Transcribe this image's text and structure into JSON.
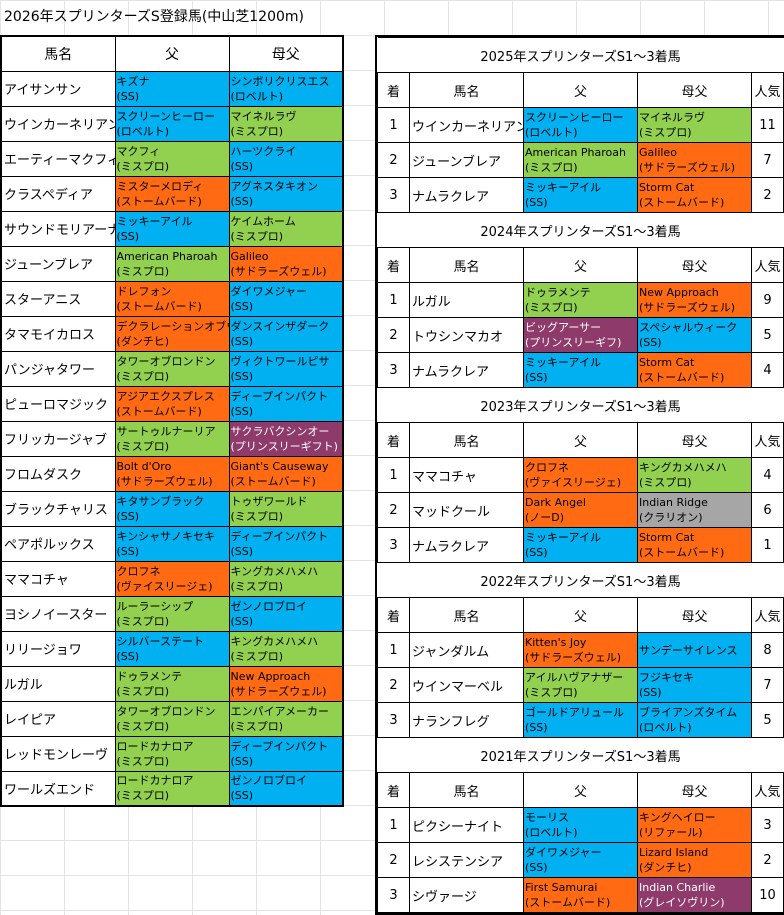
{
  "title": "2026年スプリンターズS登録馬(中山芝1200m)",
  "left": {
    "headers": {
      "name": "馬名",
      "sire": "父",
      "damsire": "母父"
    },
    "rows": [
      {
        "name": "アイサンサン",
        "sire": "キズナ",
        "sire_line": "(SS)",
        "sire_color": "blue",
        "dam": "シンボリクリスエス",
        "dam_line": "(ロベルト)",
        "dam_color": "blue"
      },
      {
        "name": "ウインカーネリアン",
        "sire": "スクリーンヒーロー",
        "sire_line": "(ロベルト)",
        "sire_color": "blue",
        "dam": "マイネルラヴ",
        "dam_line": "(ミスプロ)",
        "dam_color": "green"
      },
      {
        "name": "エーティーマクフィ",
        "sire": "マクフィ",
        "sire_line": "(ミスプロ)",
        "sire_color": "green",
        "dam": "ハーツクライ",
        "dam_line": "(SS)",
        "dam_color": "blue"
      },
      {
        "name": "クラスペディア",
        "sire": "ミスターメロディ",
        "sire_line": "(ストームバード)",
        "sire_color": "orange",
        "dam": "アグネスタキオン",
        "dam_line": "(SS)",
        "dam_color": "blue"
      },
      {
        "name": "サウンドモリアーナ",
        "sire": "ミッキーアイル",
        "sire_line": "(SS)",
        "sire_color": "blue",
        "dam": "ケイムホーム",
        "dam_line": "(ミスプロ)",
        "dam_color": "green"
      },
      {
        "name": "ジューンブレア",
        "sire": "American Pharoah",
        "sire_line": "(ミスプロ)",
        "sire_color": "green",
        "dam": "Galileo",
        "dam_line": "(サドラーズウェル)",
        "dam_color": "orange"
      },
      {
        "name": "スターアニス",
        "sire": "ドレフォン",
        "sire_line": "(ストームバード)",
        "sire_color": "orange",
        "dam": "ダイワメジャー",
        "dam_line": "(SS)",
        "dam_color": "blue"
      },
      {
        "name": "タマモイカロス",
        "sire": "デクラレーションオブウォー",
        "sire_line": "(ダンチヒ)",
        "sire_color": "orange",
        "dam": "ダンスインザダーク",
        "dam_line": "(SS)",
        "dam_color": "blue"
      },
      {
        "name": "パンジャタワー",
        "sire": "タワーオブロンドン",
        "sire_line": "(ミスプロ)",
        "sire_color": "green",
        "dam": "ヴィクトワールピサ",
        "dam_line": "(SS)",
        "dam_color": "blue"
      },
      {
        "name": "ピューロマジック",
        "sire": "アジアエクスプレス",
        "sire_line": "(ストームバード)",
        "sire_color": "orange",
        "dam": "ディープインパクト",
        "dam_line": "(SS)",
        "dam_color": "blue"
      },
      {
        "name": "フリッカージャブ",
        "sire": "サートゥルナーリア",
        "sire_line": "(ミスプロ)",
        "sire_color": "green",
        "dam": "サクラバクシンオー",
        "dam_line": "(プリンスリーギフト)",
        "dam_color": "purple"
      },
      {
        "name": "フロムダスク",
        "sire": "Bolt d'Oro",
        "sire_line": "(サドラーズウェル)",
        "sire_color": "orange",
        "dam": "Giant's Causeway",
        "dam_line": "(ストームバード)",
        "dam_color": "orange"
      },
      {
        "name": "ブラックチャリス",
        "sire": "キタサンブラック",
        "sire_line": "(SS)",
        "sire_color": "blue",
        "dam": "トゥザワールド",
        "dam_line": "(ミスプロ)",
        "dam_color": "green"
      },
      {
        "name": "ペアポルックス",
        "sire": "キンシャサノキセキ",
        "sire_line": "(SS)",
        "sire_color": "blue",
        "dam": "ディープインパクト",
        "dam_line": "(SS)",
        "dam_color": "blue"
      },
      {
        "name": "ママコチャ",
        "sire": "クロフネ",
        "sire_line": "(ヴァイスリージェ)",
        "sire_color": "orange",
        "dam": "キングカメハメハ",
        "dam_line": "(ミスプロ)",
        "dam_color": "green"
      },
      {
        "name": "ヨシノイースター",
        "sire": "ルーラーシップ",
        "sire_line": "(ミスプロ)",
        "sire_color": "green",
        "dam": "ゼンノロブロイ",
        "dam_line": "(SS)",
        "dam_color": "blue"
      },
      {
        "name": "リリージョワ",
        "sire": "シルバーステート",
        "sire_line": "(SS)",
        "sire_color": "blue",
        "dam": "キングカメハメハ",
        "dam_line": "(ミスプロ)",
        "dam_color": "green"
      },
      {
        "name": "ルガル",
        "sire": "ドゥラメンテ",
        "sire_line": "(ミスプロ)",
        "sire_color": "green",
        "dam": "New Approach",
        "dam_line": "(サドラーズウェル)",
        "dam_color": "orange"
      },
      {
        "name": "レイピア",
        "sire": "タワーオブロンドン",
        "sire_line": "(ミスプロ)",
        "sire_color": "green",
        "dam": "エンパイアメーカー",
        "dam_line": "(ミスプロ)",
        "dam_color": "green"
      },
      {
        "name": "レッドモンレーヴ",
        "sire": "ロードカナロア",
        "sire_line": "(ミスプロ)",
        "sire_color": "green",
        "dam": "ディープインパクト",
        "dam_line": "(SS)",
        "dam_color": "blue"
      },
      {
        "name": "ワールズエンド",
        "sire": "ロードカナロア",
        "sire_line": "(ミスプロ)",
        "sire_color": "green",
        "dam": "ゼンノロブロイ",
        "dam_line": "(SS)",
        "dam_color": "blue"
      }
    ]
  },
  "right": {
    "headers": {
      "rank": "着",
      "name": "馬名",
      "sire": "父",
      "damsire": "母父",
      "pop": "人気"
    },
    "sections": [
      {
        "title": "2025年スプリンターズS1～3着馬",
        "rows": [
          {
            "rank": "1",
            "name": "ウインカーネリアン",
            "sire": "スクリーンヒーロー",
            "sire_line": "(ロベルト)",
            "sire_color": "blue",
            "dam": "マイネルラヴ",
            "dam_line": "(ミスプロ)",
            "dam_color": "green",
            "pop": "11"
          },
          {
            "rank": "2",
            "name": "ジューンブレア",
            "sire": "American Pharoah",
            "sire_line": "(ミスプロ)",
            "sire_color": "green",
            "dam": "Galileo",
            "dam_line": "(サドラーズウェル)",
            "dam_color": "orange",
            "pop": "7"
          },
          {
            "rank": "3",
            "name": "ナムラクレア",
            "sire": "ミッキーアイル",
            "sire_line": "(SS)",
            "sire_color": "blue",
            "dam": "Storm Cat",
            "dam_line": "(ストームバード)",
            "dam_color": "orange",
            "pop": "2"
          }
        ]
      },
      {
        "title": "2024年スプリンターズS1～3着馬",
        "rows": [
          {
            "rank": "1",
            "name": "ルガル",
            "sire": "ドゥラメンテ",
            "sire_line": "(ミスプロ)",
            "sire_color": "green",
            "dam": "New Approach",
            "dam_line": "(サドラーズウェル)",
            "dam_color": "orange",
            "pop": "9"
          },
          {
            "rank": "2",
            "name": "トウシンマカオ",
            "sire": "ビッグアーサー",
            "sire_line": "(プリンスリーギフ)",
            "sire_color": "purple",
            "dam": "スペシャルウィーク",
            "dam_line": "(SS)",
            "dam_color": "blue",
            "pop": "5"
          },
          {
            "rank": "3",
            "name": "ナムラクレア",
            "sire": "ミッキーアイル",
            "sire_line": "(SS)",
            "sire_color": "blue",
            "dam": "Storm Cat",
            "dam_line": "(ストームバード)",
            "dam_color": "orange",
            "pop": "4"
          }
        ]
      },
      {
        "title": "2023年スプリンターズS1～3着馬",
        "rows": [
          {
            "rank": "1",
            "name": "ママコチャ",
            "sire": "クロフネ",
            "sire_line": "(ヴァイスリージェ)",
            "sire_color": "orange",
            "dam": "キングカメハメハ",
            "dam_line": "(ミスプロ)",
            "dam_color": "green",
            "pop": "4"
          },
          {
            "rank": "2",
            "name": "マッドクール",
            "sire": "Dark Angel",
            "sire_line": "(ノーD)",
            "sire_color": "orange",
            "dam": "Indian Ridge",
            "dam_line": "(クラリオン)",
            "dam_color": "gray",
            "pop": "6"
          },
          {
            "rank": "3",
            "name": "ナムラクレア",
            "sire": "ミッキーアイル",
            "sire_line": "(SS)",
            "sire_color": "blue",
            "dam": "Storm Cat",
            "dam_line": "(ストームバード)",
            "dam_color": "orange",
            "pop": "1"
          }
        ]
      },
      {
        "title": "2022年スプリンターズS1～3着馬",
        "rows": [
          {
            "rank": "1",
            "name": "ジャンダルム",
            "sire": "Kitten's Joy",
            "sire_line": "(サドラーズウェル)",
            "sire_color": "orange",
            "dam": "サンデーサイレンス",
            "dam_line": "",
            "dam_color": "blue",
            "pop": "8"
          },
          {
            "rank": "2",
            "name": "ウインマーベル",
            "sire": "アイルハヴアナザー",
            "sire_line": "(ミスプロ)",
            "sire_color": "green",
            "dam": "フジキセキ",
            "dam_line": "(SS)",
            "dam_color": "blue",
            "pop": "7"
          },
          {
            "rank": "3",
            "name": "ナランフレグ",
            "sire": "ゴールドアリュール",
            "sire_line": "(SS)",
            "sire_color": "blue",
            "dam": "ブライアンズタイム",
            "dam_line": "(ロベルト)",
            "dam_color": "blue",
            "pop": "5"
          }
        ]
      },
      {
        "title": "2021年スプリンターズS1～3着馬",
        "rows": [
          {
            "rank": "1",
            "name": "ピクシーナイト",
            "sire": "モーリス",
            "sire_line": "(ロベルト)",
            "sire_color": "blue",
            "dam": "キングヘイロー",
            "dam_line": "(リファール)",
            "dam_color": "orange",
            "pop": "3"
          },
          {
            "rank": "2",
            "name": "レシステンシア",
            "sire": "ダイワメジャー",
            "sire_line": "(SS)",
            "sire_color": "blue",
            "dam": "Lizard Island",
            "dam_line": "(ダンチヒ)",
            "dam_color": "orange",
            "pop": "2"
          },
          {
            "rank": "3",
            "name": "シヴァージ",
            "sire": "First Samurai",
            "sire_line": "(ストームバード)",
            "sire_color": "orange",
            "dam": "Indian Charlie",
            "dam_line": "(グレイソヴリン)",
            "dam_color": "purple",
            "pop": "10"
          }
        ]
      }
    ]
  },
  "colors": {
    "blue": "#00b0f0",
    "green": "#92d050",
    "orange": "#ff6a13",
    "purple": "#8e3a6a",
    "gray": "#a6a6a6"
  }
}
